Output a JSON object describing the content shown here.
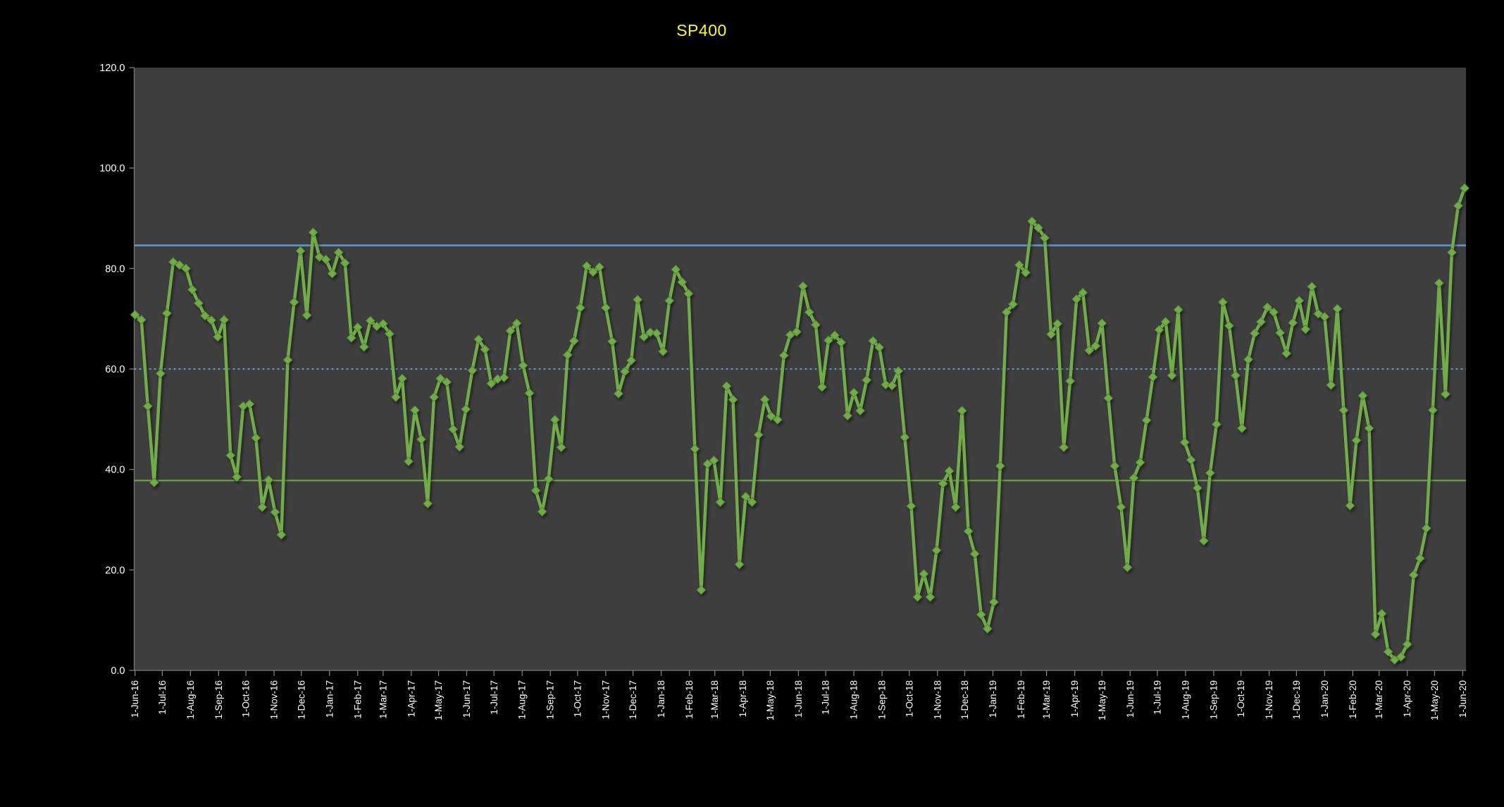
{
  "title": {
    "text": "SP400",
    "color": "#FFFF00"
  },
  "colors": {
    "outer_bg": "#000000",
    "plot_bg": "#3E3E3E",
    "axis_line": "#7F7F7F",
    "tick_mark": "#898989",
    "tick_label": "#FFFFFF",
    "series_green": "#70AD47",
    "series_green_edge": "#548235",
    "ref_blue": "#5B9BD5"
  },
  "chart_data": {
    "type": "line",
    "title": "SP400",
    "xlabel": "",
    "ylabel": "",
    "ylim": [
      0,
      120
    ],
    "grid": false,
    "legend": false,
    "y_tick_labels": [
      "0.0",
      "20.0",
      "40.0",
      "60.0",
      "80.0",
      "100.0",
      "120.0"
    ],
    "y_tick_values": [
      0,
      20,
      40,
      60,
      80,
      100,
      120
    ],
    "x_tick_labels": [
      "1-Jun-16",
      "1-Jul-16",
      "1-Aug-16",
      "1-Sep-16",
      "1-Oct-16",
      "1-Nov-16",
      "1-Dec-16",
      "1-Jan-17",
      "1-Feb-17",
      "1-Mar-17",
      "1-Apr-17",
      "1-May-17",
      "1-Jun-17",
      "1-Jul-17",
      "1-Aug-17",
      "1-Sep-17",
      "1-Oct-17",
      "1-Nov-17",
      "1-Dec-17",
      "1-Jan-18",
      "1-Feb-18",
      "1-Mar-18",
      "1-Apr-18",
      "1-May-18",
      "1-Jun-18",
      "1-Jul-18",
      "1-Aug-18",
      "1-Sep-18",
      "1-Oct-18",
      "1-Nov-18",
      "1-Dec-18",
      "1-Jan-19",
      "1-Feb-19",
      "1-Mar-19",
      "1-Apr-19",
      "1-May-19",
      "1-Jun-19",
      "1-Jul-19",
      "1-Aug-19",
      "1-Sep-19",
      "1-Oct-19",
      "1-Nov-19",
      "1-Dec-19",
      "1-Jan-20",
      "1-Feb-20",
      "1-Mar-20",
      "1-Apr-20",
      "1-May-20",
      "1-Jun-20"
    ],
    "reference_lines": [
      {
        "name": "upper-band-line",
        "value": 84.6,
        "style": "solid",
        "color": "#5B9BD5",
        "width": 2.5
      },
      {
        "name": "mid-band-line",
        "value": 60.0,
        "style": "dotted",
        "color": "#5B9BD5",
        "width": 2
      },
      {
        "name": "lower-band-line",
        "value": 37.8,
        "style": "solid",
        "color": "#70AD47",
        "width": 2
      }
    ],
    "series": [
      {
        "name": "SP400",
        "color": "#70AD47",
        "marker": "diamond",
        "start_date": "2016-06-01",
        "interval_days": 7,
        "values": [
          70.8,
          69.8,
          52.6,
          37.4,
          59.1,
          71.1,
          81.3,
          80.7,
          80.0,
          75.8,
          73.1,
          70.6,
          69.7,
          66.4,
          69.8,
          42.8,
          38.5,
          52.6,
          53.0,
          46.3,
          32.5,
          37.9,
          31.5,
          27.0,
          61.8,
          73.3,
          83.5,
          70.7,
          87.2,
          82.3,
          81.8,
          79.0,
          83.2,
          81.1,
          66.2,
          68.3,
          64.4,
          69.6,
          68.5,
          69.0,
          67.0,
          54.4,
          58.1,
          41.6,
          51.8,
          46.0,
          33.2,
          54.4,
          58.1,
          57.4,
          48.0,
          44.5,
          52.0,
          59.7,
          65.9,
          63.9,
          57.1,
          58.0,
          58.3,
          67.6,
          69.1,
          60.7,
          55.2,
          35.8,
          31.6,
          38.1,
          49.9,
          44.4,
          62.8,
          65.6,
          72.2,
          80.5,
          79.3,
          80.3,
          72.2,
          65.5,
          55.1,
          59.5,
          61.7,
          73.8,
          66.4,
          67.3,
          67.1,
          63.5,
          73.6,
          79.8,
          77.3,
          75.0,
          44.1,
          16.0,
          41.1,
          41.8,
          33.5,
          56.6,
          53.9,
          21.1,
          34.6,
          33.5,
          46.9,
          53.9,
          50.6,
          49.9,
          62.7,
          66.8,
          67.4,
          76.5,
          71.3,
          68.8,
          56.4,
          65.7,
          66.7,
          65.3,
          50.7,
          55.3,
          51.7,
          57.8,
          65.6,
          64.3,
          56.9,
          56.7,
          59.6,
          46.4,
          32.7,
          14.6,
          19.2,
          14.6,
          23.9,
          37.2,
          39.7,
          32.5,
          51.7,
          27.7,
          23.2,
          11.1,
          8.3,
          13.6,
          40.7,
          71.3,
          72.9,
          80.7,
          79.2,
          89.4,
          88.1,
          86.1,
          66.9,
          69.0,
          44.4,
          57.6,
          73.9,
          75.2,
          63.7,
          64.6,
          69.1,
          54.2,
          40.7,
          32.5,
          20.5,
          38.3,
          41.4,
          49.8,
          58.4,
          67.8,
          69.4,
          58.7,
          71.8,
          45.4,
          41.9,
          36.3,
          25.8,
          39.3,
          49.0,
          73.3,
          68.6,
          58.7,
          48.2,
          61.9,
          67.1,
          69.4,
          72.3,
          71.3,
          67.2,
          63.1,
          69.2,
          73.6,
          67.9,
          76.4,
          71.0,
          70.4,
          56.8,
          72.0,
          51.8,
          32.8,
          45.8,
          54.7,
          48.2,
          7.2,
          11.3,
          3.7,
          2.1,
          2.7,
          5.2,
          19.0,
          22.3,
          28.3,
          51.8,
          77.1,
          55.0,
          83.2,
          92.5,
          96.0
        ]
      }
    ]
  }
}
